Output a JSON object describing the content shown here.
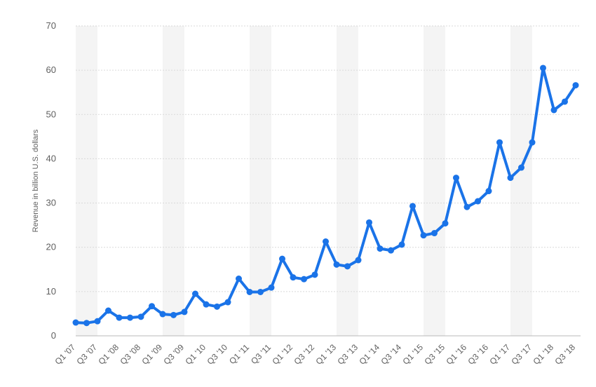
{
  "chart_data": {
    "type": "line",
    "title": "",
    "xlabel": "",
    "ylabel": "Revenue in billion U.S. dollars",
    "ylim": [
      0,
      70
    ],
    "yticks": [
      0,
      10,
      20,
      30,
      40,
      50,
      60,
      70
    ],
    "grid": true,
    "legend": "none",
    "line_color": "#1a73e8",
    "band_color": "#f4f4f4",
    "categories": [
      "Q1 '07",
      "Q2 '07",
      "Q3 '07",
      "Q4 '07",
      "Q1 '08",
      "Q2 '08",
      "Q3 '08",
      "Q4 '08",
      "Q1 '09",
      "Q2 '09",
      "Q3 '09",
      "Q4 '09",
      "Q1 '10",
      "Q2 '10",
      "Q3 '10",
      "Q4 '10",
      "Q1 '11",
      "Q2 '11",
      "Q3 '11",
      "Q4 '11",
      "Q1 '12",
      "Q2 '12",
      "Q3 '12",
      "Q4 '12",
      "Q1 '13",
      "Q2 '13",
      "Q3 '13",
      "Q4 '13",
      "Q1 '14",
      "Q2 '14",
      "Q3 '14",
      "Q4 '14",
      "Q1 '15",
      "Q2 '15",
      "Q3 '15",
      "Q4 '15",
      "Q1 '16",
      "Q2 '16",
      "Q3 '16",
      "Q4 '16",
      "Q1 '17",
      "Q2 '17",
      "Q3 '17",
      "Q4 '17",
      "Q1 '18",
      "Q2 '18",
      "Q3 '18"
    ],
    "xtick_labels": [
      "Q1 '07",
      "Q3 '07",
      "Q1 '08",
      "Q3 '08",
      "Q1 '09",
      "Q3 '09",
      "Q1 '10",
      "Q3 '10",
      "Q1 '11",
      "Q3 '11",
      "Q1 '12",
      "Q3 '12",
      "Q1 '13",
      "Q3 '13",
      "Q1 '14",
      "Q3 '14",
      "Q1 '15",
      "Q3 '15",
      "Q1 '16",
      "Q3 '16",
      "Q1 '17",
      "Q3 '17",
      "Q1 '18",
      "Q3 '18"
    ],
    "series": [
      {
        "values": [
          3.0,
          2.9,
          3.3,
          5.7,
          4.1,
          4.1,
          4.3,
          6.7,
          4.9,
          4.7,
          5.4,
          9.5,
          7.1,
          6.6,
          7.6,
          12.9,
          9.9,
          9.9,
          10.9,
          17.4,
          13.2,
          12.8,
          13.8,
          21.3,
          16.1,
          15.7,
          17.1,
          25.6,
          19.7,
          19.3,
          20.6,
          29.3,
          22.7,
          23.2,
          25.4,
          35.7,
          29.1,
          30.4,
          32.7,
          43.7,
          35.7,
          38.0,
          43.7,
          60.5,
          51.0,
          52.9,
          56.6
        ]
      }
    ]
  }
}
